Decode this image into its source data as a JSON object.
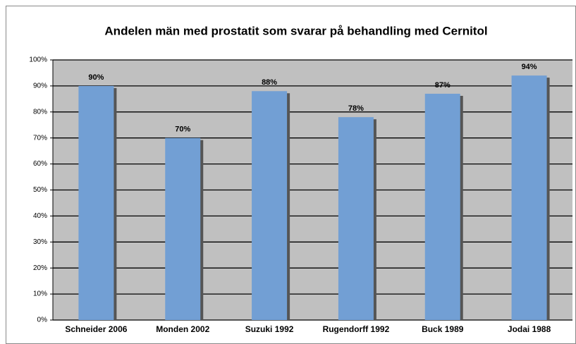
{
  "chart_data": {
    "type": "bar",
    "title": "Andelen män med prostatit som svarar på behandling med Cernitol",
    "categories": [
      "Schneider 2006",
      "Monden 2002",
      "Suzuki 1992",
      "Rugendorff 1992",
      "Buck 1989",
      "Jodai 1988"
    ],
    "values": [
      90,
      70,
      88,
      78,
      87,
      94
    ],
    "value_labels": [
      "90%",
      "70%",
      "88%",
      "78%",
      "87%",
      "94%"
    ],
    "color": "#729fd4",
    "ylim": [
      0,
      100
    ],
    "yticks": [
      {
        "value": 0,
        "label": "0%"
      },
      {
        "value": 10,
        "label": "10%"
      },
      {
        "value": 20,
        "label": "20%"
      },
      {
        "value": 30,
        "label": "30%"
      },
      {
        "value": 40,
        "label": "40%"
      },
      {
        "value": 50,
        "label": "50%"
      },
      {
        "value": 60,
        "label": "60%"
      },
      {
        "value": 70,
        "label": "70%"
      },
      {
        "value": 80,
        "label": "80%"
      },
      {
        "value": 90,
        "label": "90%"
      },
      {
        "value": 100,
        "label": "100%"
      }
    ],
    "grid": true
  }
}
